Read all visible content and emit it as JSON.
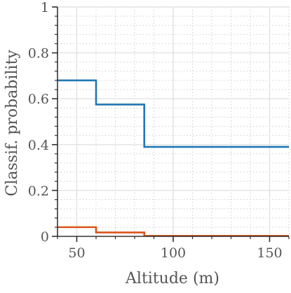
{
  "chart_data": {
    "type": "line",
    "xlabel": "Altitude (m)",
    "ylabel": "Classif. probability",
    "xlim": [
      40,
      160
    ],
    "ylim": [
      0,
      1
    ],
    "x_ticks": [
      50,
      100,
      150
    ],
    "y_ticks": [
      0,
      0.2,
      0.4,
      0.6,
      0.8,
      1
    ],
    "x_tick_labels": [
      "50",
      "100",
      "150"
    ],
    "y_tick_labels": [
      "0",
      "0.2",
      "0.4",
      "0.6",
      "0.8",
      "1"
    ],
    "x_minor_step": 10,
    "y_minor_step": 0.04,
    "grid": true,
    "series": [
      {
        "color": "#1f77b4",
        "step": true,
        "points": [
          {
            "x": 40,
            "y": 0.68
          },
          {
            "x": 60,
            "y": 0.68
          },
          {
            "x": 60,
            "y": 0.575
          },
          {
            "x": 85,
            "y": 0.575
          },
          {
            "x": 85,
            "y": 0.39
          },
          {
            "x": 160,
            "y": 0.39
          }
        ]
      },
      {
        "color": "#d9541a",
        "step": true,
        "points": [
          {
            "x": 40,
            "y": 0.04
          },
          {
            "x": 60,
            "y": 0.04
          },
          {
            "x": 60,
            "y": 0.017
          },
          {
            "x": 85,
            "y": 0.017
          },
          {
            "x": 85,
            "y": 0.002
          },
          {
            "x": 160,
            "y": 0.002
          }
        ]
      }
    ]
  }
}
